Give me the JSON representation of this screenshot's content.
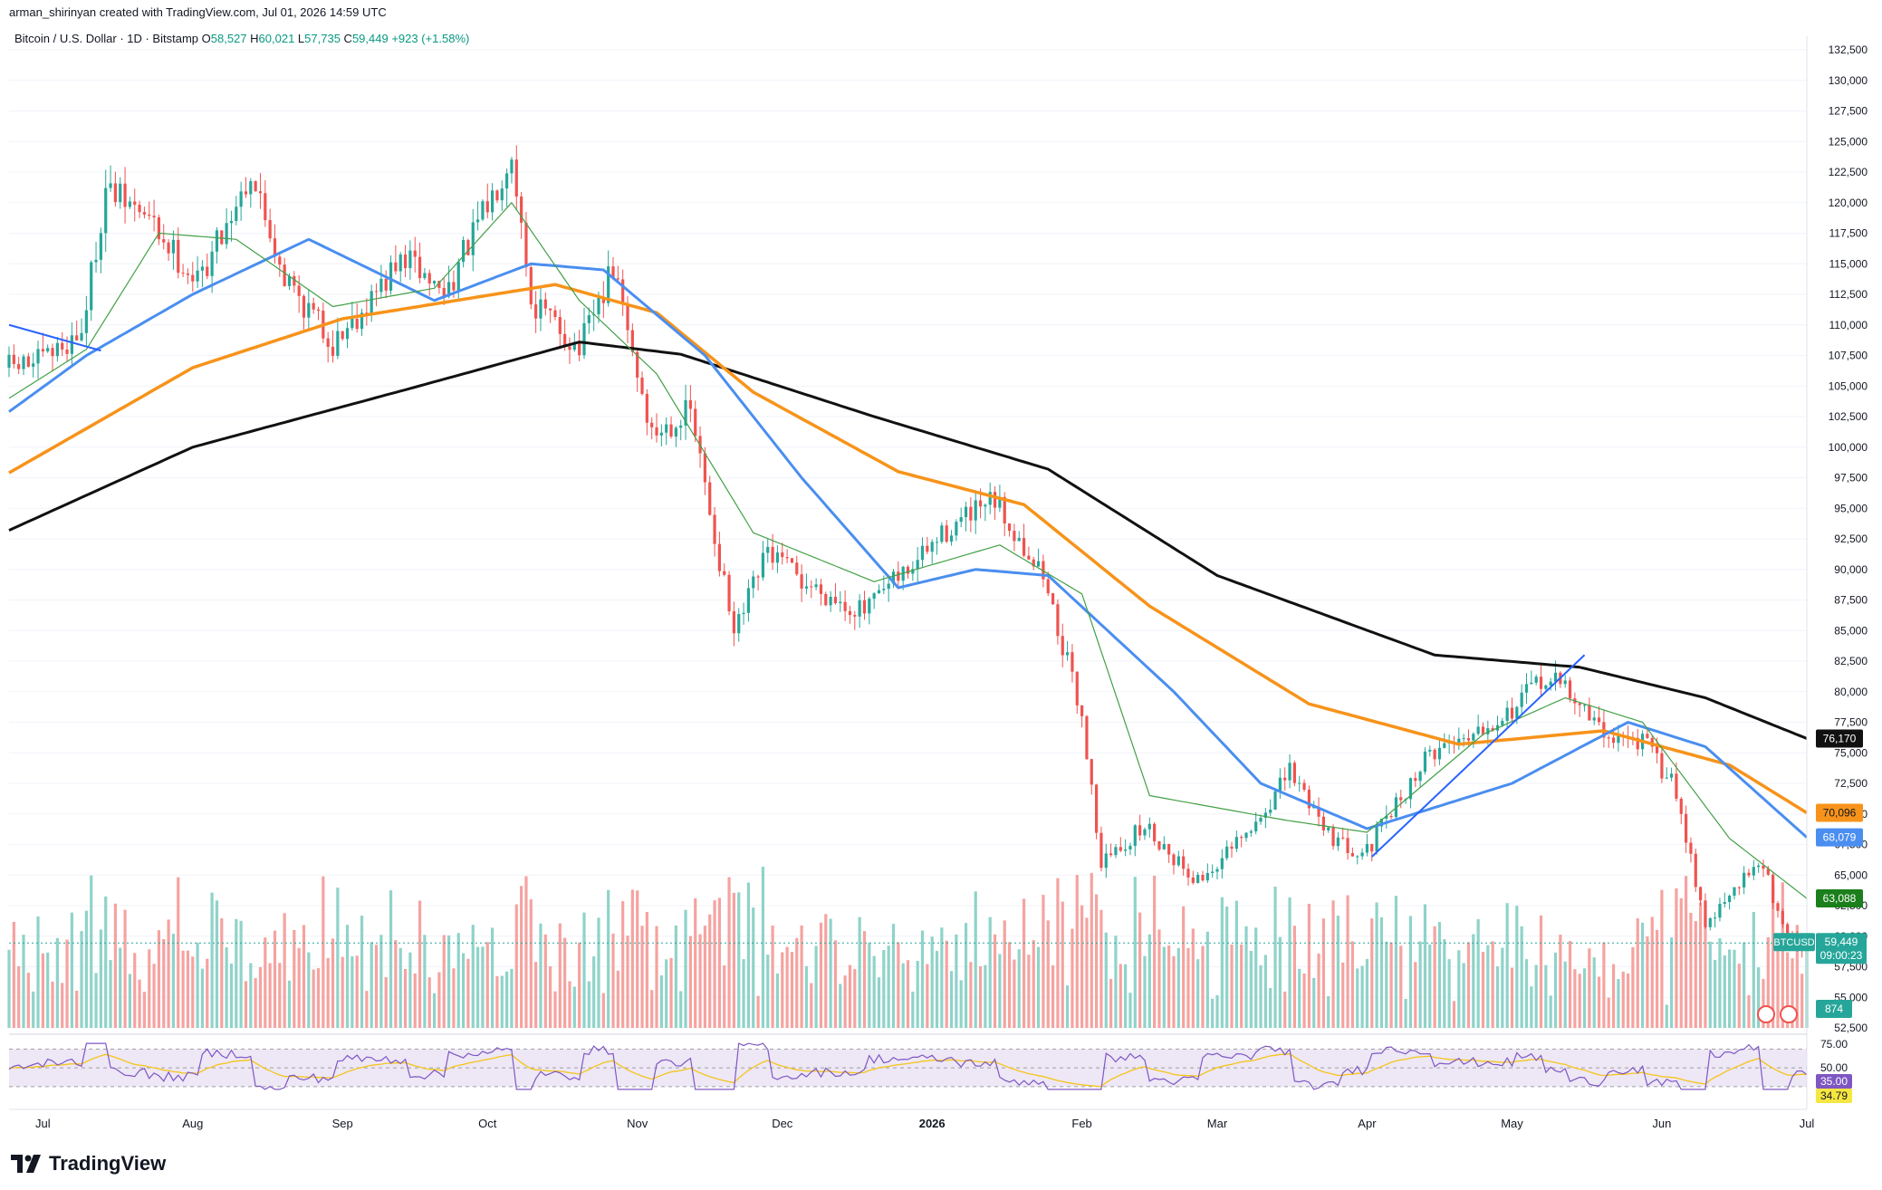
{
  "header": {
    "credit": "arman_shirinyan created with TradingView.com, Jul 01, 2026 14:59 UTC"
  },
  "symbol": {
    "title": "Bitcoin / U.S. Dollar · 1D · Bitstamp",
    "open_label": "O",
    "open": "58,527",
    "high_label": "H",
    "high": "60,021",
    "low_label": "L",
    "low": "57,735",
    "close_label": "C",
    "close": "59,449",
    "change": "+923 (+1.58%)"
  },
  "branding": {
    "name": "TradingView"
  },
  "colors": {
    "up": "#26a69a",
    "down": "#ef5350",
    "vol_up": "#8fd3c9",
    "vol_down": "#f5a3a0",
    "ma_fast": "#43a047",
    "ma_mid": "#4a8ef0",
    "ma_slow": "#f7931a",
    "ma_long": "#111111",
    "rsi": "#7e57c2",
    "rsi_ma": "#f5c518",
    "rsi_band": "#ede7f6"
  },
  "chart_data": {
    "type": "candlestick",
    "y_axis_ticks": [
      "132,500",
      "130,000",
      "127,500",
      "125,000",
      "122,500",
      "120,000",
      "117,500",
      "115,000",
      "112,500",
      "110,000",
      "107,500",
      "105,000",
      "102,500",
      "100,000",
      "97,500",
      "95,000",
      "92,500",
      "90,000",
      "87,500",
      "85,000",
      "82,500",
      "80,000",
      "77,500",
      "75,000",
      "72,500",
      "70,000",
      "67,500",
      "65,000",
      "62,500",
      "60,000",
      "57,500",
      "55,000",
      "52,500"
    ],
    "ylim": [
      52500,
      132500
    ],
    "x_axis_labels": [
      "Jul",
      "Aug",
      "Sep",
      "Oct",
      "Nov",
      "Dec",
      "2026",
      "Feb",
      "Mar",
      "Apr",
      "May",
      "Jun",
      "Jul"
    ],
    "price_anchors": [
      {
        "date": "2025-06-24",
        "price": 106500
      },
      {
        "date": "2025-07-01",
        "price": 107000
      },
      {
        "date": "2025-07-09",
        "price": 109500
      },
      {
        "date": "2025-07-14",
        "price": 121000
      },
      {
        "date": "2025-07-22",
        "price": 119000
      },
      {
        "date": "2025-08-02",
        "price": 113500
      },
      {
        "date": "2025-08-13",
        "price": 122500
      },
      {
        "date": "2025-08-20",
        "price": 114000
      },
      {
        "date": "2025-08-30",
        "price": 108500
      },
      {
        "date": "2025-09-14",
        "price": 115500
      },
      {
        "date": "2025-09-22",
        "price": 112500
      },
      {
        "date": "2025-10-02",
        "price": 120500
      },
      {
        "date": "2025-10-06",
        "price": 124500
      },
      {
        "date": "2025-10-10",
        "price": 112000
      },
      {
        "date": "2025-10-20",
        "price": 108000
      },
      {
        "date": "2025-10-27",
        "price": 114500
      },
      {
        "date": "2025-11-04",
        "price": 101000
      },
      {
        "date": "2025-11-12",
        "price": 103000
      },
      {
        "date": "2025-11-21",
        "price": 84500
      },
      {
        "date": "2025-11-28",
        "price": 91500
      },
      {
        "date": "2025-12-05",
        "price": 89000
      },
      {
        "date": "2025-12-18",
        "price": 86500
      },
      {
        "date": "2026-01-05",
        "price": 93500
      },
      {
        "date": "2026-01-14",
        "price": 95500
      },
      {
        "date": "2026-01-24",
        "price": 89500
      },
      {
        "date": "2026-02-01",
        "price": 78000
      },
      {
        "date": "2026-02-05",
        "price": 66000
      },
      {
        "date": "2026-02-14",
        "price": 69000
      },
      {
        "date": "2026-02-25",
        "price": 64500
      },
      {
        "date": "2026-03-08",
        "price": 68500
      },
      {
        "date": "2026-03-16",
        "price": 73500
      },
      {
        "date": "2026-03-26",
        "price": 67500
      },
      {
        "date": "2026-04-01",
        "price": 67000
      },
      {
        "date": "2026-04-14",
        "price": 75000
      },
      {
        "date": "2026-05-01",
        "price": 78500
      },
      {
        "date": "2026-05-07",
        "price": 81000
      },
      {
        "date": "2026-05-12",
        "price": 80500
      },
      {
        "date": "2026-05-20",
        "price": 76500
      },
      {
        "date": "2026-05-28",
        "price": 76000
      },
      {
        "date": "2026-06-04",
        "price": 72000
      },
      {
        "date": "2026-06-10",
        "price": 61000
      },
      {
        "date": "2026-06-16",
        "price": 63500
      },
      {
        "date": "2026-06-21",
        "price": 66500
      },
      {
        "date": "2026-06-27",
        "price": 60000
      },
      {
        "date": "2026-07-01",
        "price": 59449
      }
    ],
    "series": [
      {
        "name": "",
        "kind": "ma-long",
        "anchors": [
          {
            "date": "2025-06-24",
            "price": 93200
          },
          {
            "date": "2025-08-01",
            "price": 100000
          },
          {
            "date": "2025-09-15",
            "price": 104800
          },
          {
            "date": "2025-10-20",
            "price": 108600
          },
          {
            "date": "2025-11-10",
            "price": 107600
          },
          {
            "date": "2025-12-20",
            "price": 102500
          },
          {
            "date": "2026-01-25",
            "price": 98200
          },
          {
            "date": "2026-03-01",
            "price": 89500
          },
          {
            "date": "2026-04-15",
            "price": 83000
          },
          {
            "date": "2026-05-15",
            "price": 82000
          },
          {
            "date": "2026-06-10",
            "price": 79500
          },
          {
            "date": "2026-07-01",
            "price": 76170
          }
        ]
      },
      {
        "name": "",
        "kind": "ma-slow",
        "anchors": [
          {
            "date": "2025-06-24",
            "price": 97900
          },
          {
            "date": "2025-08-01",
            "price": 106500
          },
          {
            "date": "2025-09-01",
            "price": 110500
          },
          {
            "date": "2025-10-15",
            "price": 113300
          },
          {
            "date": "2025-11-05",
            "price": 111000
          },
          {
            "date": "2025-11-25",
            "price": 104500
          },
          {
            "date": "2025-12-25",
            "price": 98000
          },
          {
            "date": "2026-01-20",
            "price": 95300
          },
          {
            "date": "2026-02-15",
            "price": 87000
          },
          {
            "date": "2026-03-20",
            "price": 79000
          },
          {
            "date": "2026-04-20",
            "price": 75700
          },
          {
            "date": "2026-05-20",
            "price": 76800
          },
          {
            "date": "2026-06-15",
            "price": 74000
          },
          {
            "date": "2026-07-01",
            "price": 70096
          }
        ]
      },
      {
        "name": "",
        "kind": "ma-mid",
        "anchors": [
          {
            "date": "2025-06-24",
            "price": 102900
          },
          {
            "date": "2025-07-10",
            "price": 107500
          },
          {
            "date": "2025-08-01",
            "price": 112500
          },
          {
            "date": "2025-08-25",
            "price": 117000
          },
          {
            "date": "2025-09-20",
            "price": 112000
          },
          {
            "date": "2025-10-10",
            "price": 115000
          },
          {
            "date": "2025-10-25",
            "price": 114500
          },
          {
            "date": "2025-11-15",
            "price": 107500
          },
          {
            "date": "2025-12-05",
            "price": 97500
          },
          {
            "date": "2025-12-25",
            "price": 88500
          },
          {
            "date": "2026-01-10",
            "price": 90000
          },
          {
            "date": "2026-01-25",
            "price": 89500
          },
          {
            "date": "2026-02-20",
            "price": 80000
          },
          {
            "date": "2026-03-10",
            "price": 72500
          },
          {
            "date": "2026-04-01",
            "price": 68800
          },
          {
            "date": "2026-05-01",
            "price": 72500
          },
          {
            "date": "2026-05-25",
            "price": 77500
          },
          {
            "date": "2026-06-10",
            "price": 75500
          },
          {
            "date": "2026-07-01",
            "price": 68079
          }
        ]
      },
      {
        "name": "",
        "kind": "ma-fast",
        "anchors": [
          {
            "date": "2025-06-24",
            "price": 104000
          },
          {
            "date": "2025-07-10",
            "price": 108000
          },
          {
            "date": "2025-07-25",
            "price": 117500
          },
          {
            "date": "2025-08-10",
            "price": 117000
          },
          {
            "date": "2025-08-30",
            "price": 111500
          },
          {
            "date": "2025-09-20",
            "price": 113000
          },
          {
            "date": "2025-10-06",
            "price": 120000
          },
          {
            "date": "2025-10-20",
            "price": 112000
          },
          {
            "date": "2025-11-05",
            "price": 106000
          },
          {
            "date": "2025-11-25",
            "price": 93000
          },
          {
            "date": "2025-12-20",
            "price": 89000
          },
          {
            "date": "2026-01-15",
            "price": 92000
          },
          {
            "date": "2026-02-01",
            "price": 88000
          },
          {
            "date": "2026-02-15",
            "price": 71500
          },
          {
            "date": "2026-03-15",
            "price": 69500
          },
          {
            "date": "2026-04-01",
            "price": 68500
          },
          {
            "date": "2026-04-25",
            "price": 76500
          },
          {
            "date": "2026-05-12",
            "price": 79500
          },
          {
            "date": "2026-05-28",
            "price": 77500
          },
          {
            "date": "2026-06-15",
            "price": 68000
          },
          {
            "date": "2026-07-01",
            "price": 63088
          }
        ]
      }
    ],
    "trendlines": [
      {
        "from": {
          "date": "2025-06-24",
          "price": 110000
        },
        "to": {
          "date": "2025-07-13",
          "price": 107900
        }
      },
      {
        "from": {
          "date": "2026-04-02",
          "price": 66500
        },
        "to": {
          "date": "2026-05-16",
          "price": 83000
        }
      }
    ],
    "current_price_line": 59449,
    "price_labels": [
      {
        "text": "76,170",
        "price": 76170,
        "color": "#111111",
        "text_color": "#ffffff"
      },
      {
        "text": "70,096",
        "price": 70096,
        "color": "#f7931a",
        "text_color": "#131722"
      },
      {
        "text": "68,079",
        "price": 68079,
        "color": "#4a8ef0",
        "text_color": "#ffffff"
      },
      {
        "text": "63,088",
        "price": 63088,
        "color": "#1b7f1b",
        "text_color": "#ffffff"
      }
    ],
    "current_label": {
      "symbol": "BTCUSD",
      "price": "59,449",
      "countdown": "09:00:23"
    },
    "volume_label": "874",
    "rsi": {
      "levels": [
        "75.00",
        "50.00"
      ],
      "value_labels": [
        {
          "text": "35.00",
          "color": "#7e57c2",
          "text_color": "#ffffff"
        },
        {
          "text": "34.79",
          "color": "#f5e642",
          "text_color": "#131722"
        }
      ],
      "ylim": [
        25,
        80
      ],
      "band": [
        30,
        70
      ]
    }
  }
}
